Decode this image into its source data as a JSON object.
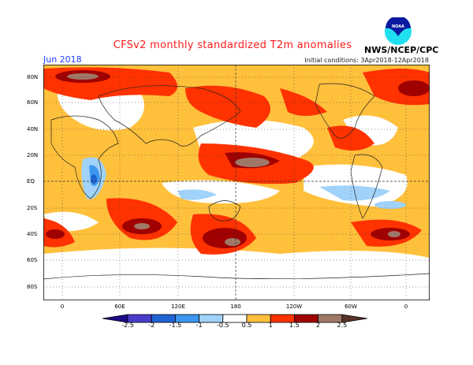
{
  "header": {
    "title": "CFSv2 monthly standardized T2m anomalies",
    "month": "Jun 2018",
    "initial_conditions": "Initial conditions: 3Apr2018-12Apr2018",
    "organization": "NWS/NCEP/CPC",
    "logo_text": "NOAA"
  },
  "map": {
    "lat_labels": [
      "80N",
      "60N",
      "40N",
      "20N",
      "EQ",
      "20S",
      "40S",
      "60S",
      "80S"
    ],
    "lon_labels": [
      "0",
      "60E",
      "120E",
      "180",
      "120W",
      "60W",
      "0"
    ]
  },
  "colorbar": {
    "labels": [
      "-2.5",
      "-2",
      "-1.5",
      "-1",
      "-0.5",
      "0.5",
      "1",
      "1.5",
      "2",
      "2.5"
    ],
    "colors": [
      "#1c0c8a",
      "#4a3cc8",
      "#1e64d2",
      "#3c96f0",
      "#a0d2fa",
      "#ffffff",
      "#ffc03c",
      "#ff3200",
      "#a00000",
      "#a07868",
      "#5a3228"
    ]
  }
}
